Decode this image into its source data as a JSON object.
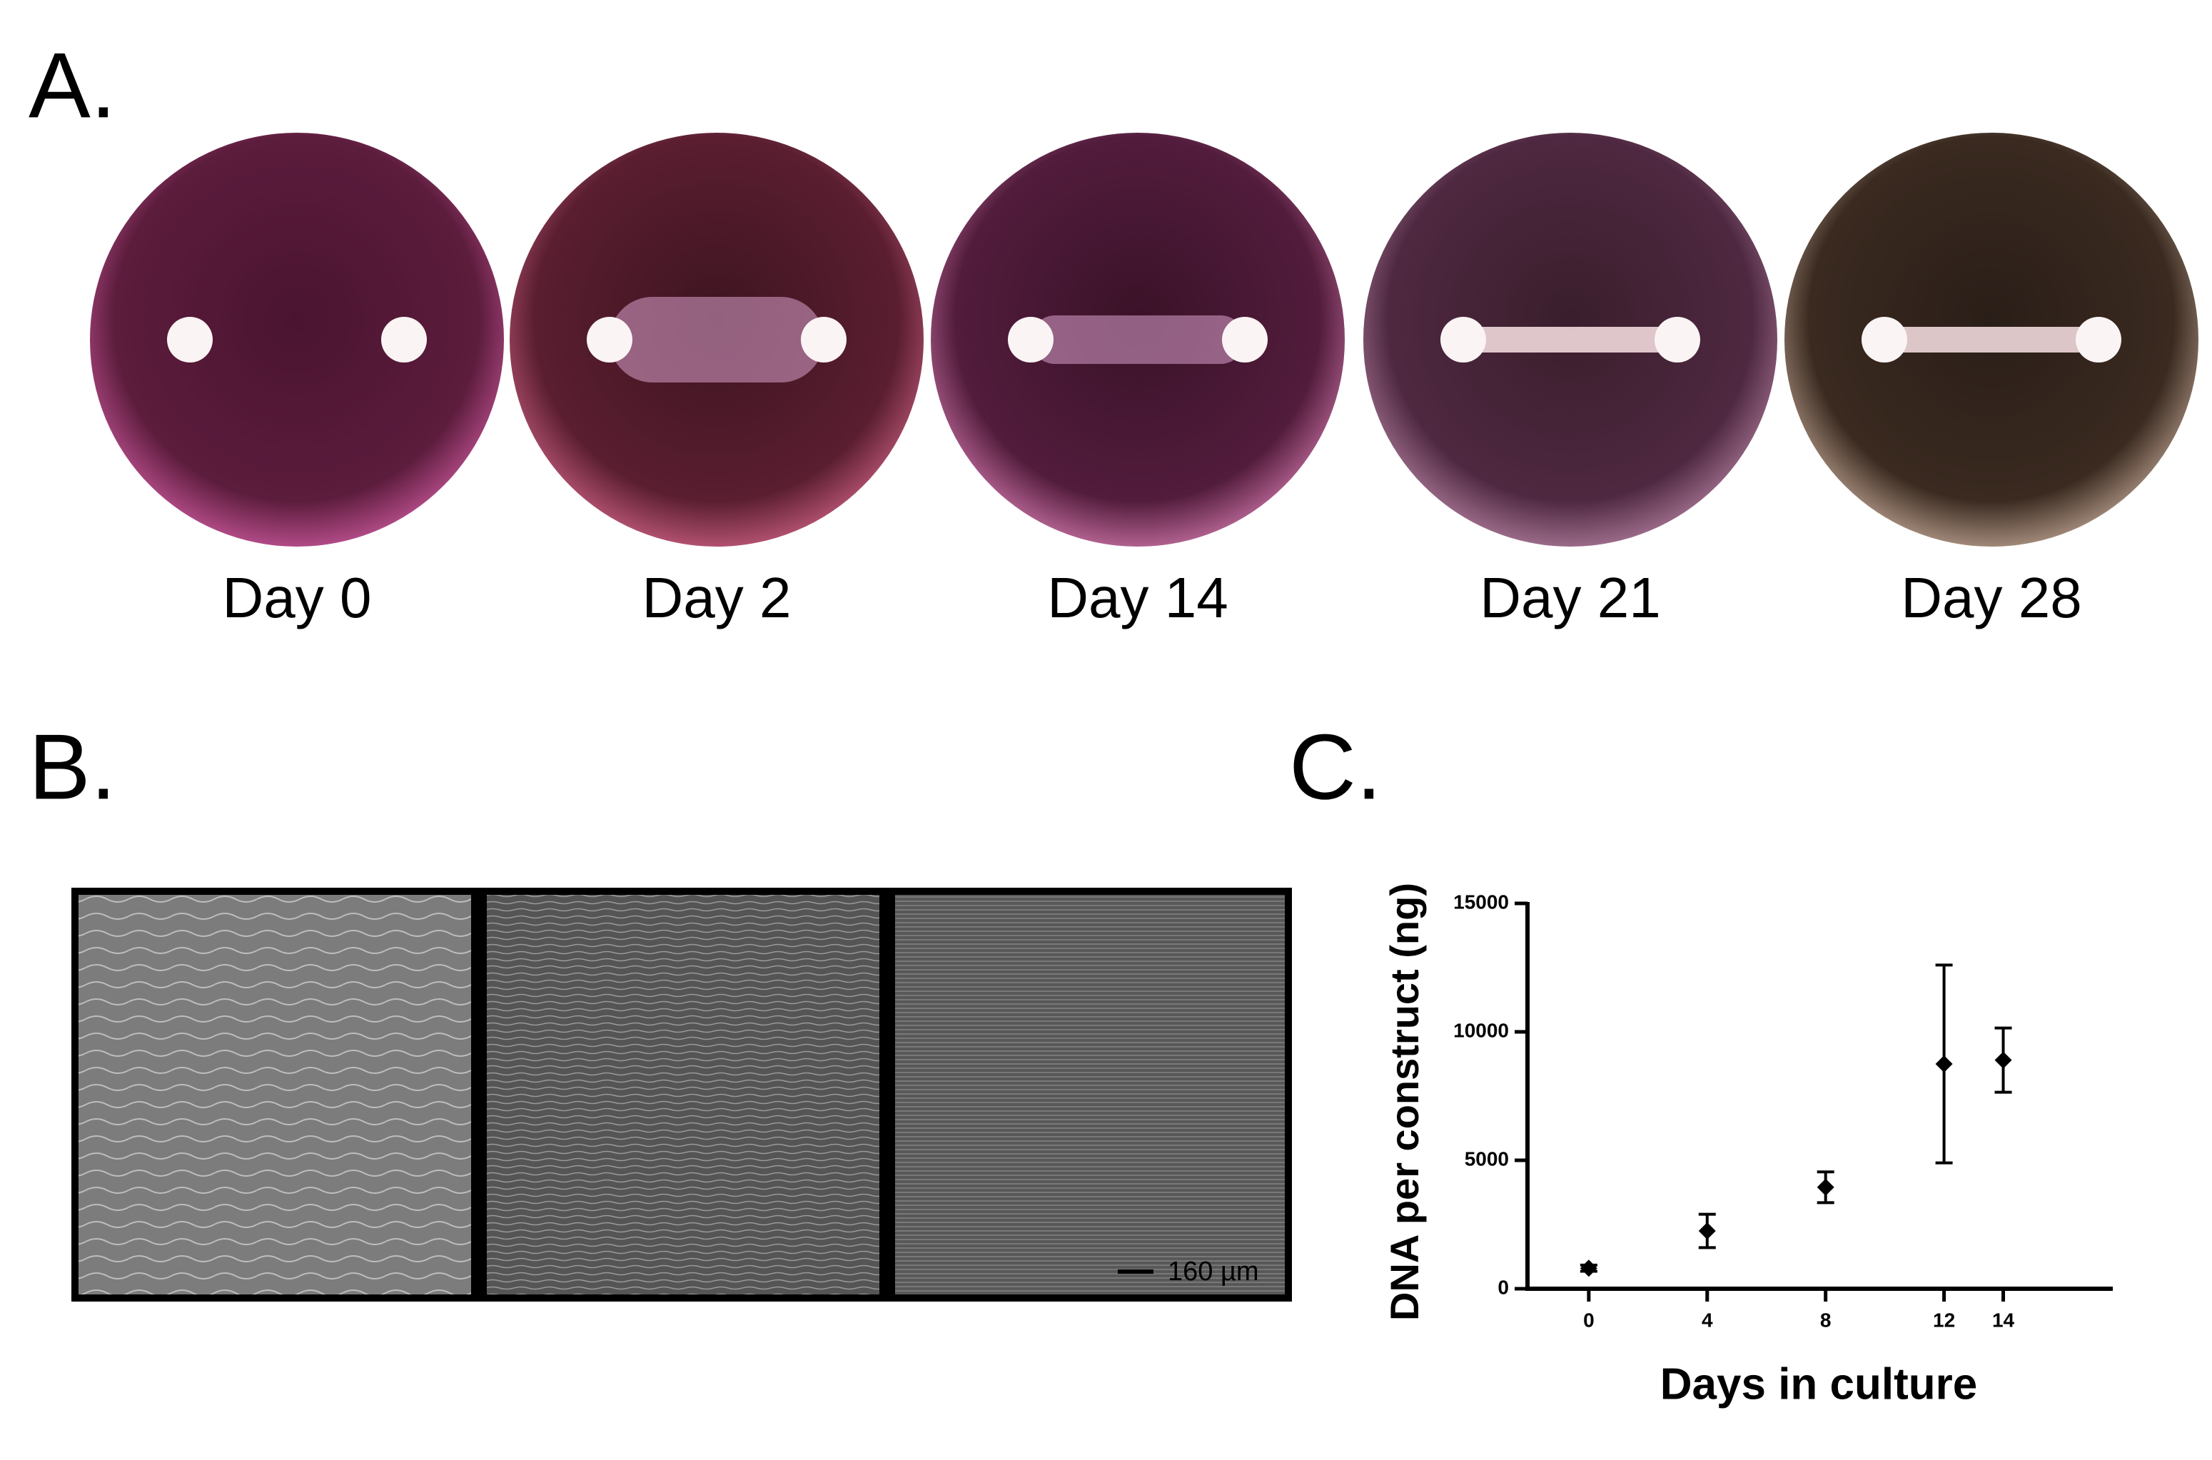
{
  "panels": {
    "a": {
      "label": "A.",
      "days": [
        "Day 0",
        "Day 2",
        "Day 14",
        "Day 21",
        "Day 28"
      ]
    },
    "b": {
      "label": "B.",
      "scale_bar": "160 µm"
    },
    "c": {
      "label": "C."
    }
  },
  "chart_data": {
    "type": "scatter",
    "xlabel": "Days in culture",
    "ylabel": "DNA per construct  (ng)",
    "x": [
      0,
      4,
      8,
      12,
      14
    ],
    "values": [
      800,
      2250,
      3950,
      8750,
      8900
    ],
    "errors": [
      120,
      650,
      600,
      3850,
      1250
    ],
    "color": "#000000",
    "xlim": [
      -2.07,
      17.7
    ],
    "ylim": [
      0,
      15000
    ],
    "xticks": [
      0,
      4,
      8,
      12,
      14
    ],
    "yticks": [
      0,
      5000,
      10000,
      15000
    ],
    "grid": false
  }
}
